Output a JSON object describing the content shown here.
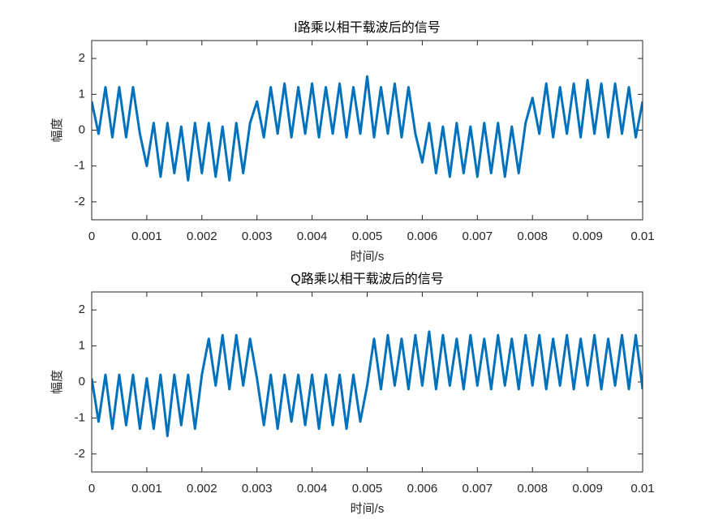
{
  "chart_data": [
    {
      "type": "line",
      "title": "I路乘以相干载波后的信号",
      "xlabel": "时间/s",
      "ylabel": "幅度",
      "color": "#0072bd",
      "x": [
        0,
        0.000125,
        0.00025,
        0.000375,
        0.0005,
        0.000625,
        0.00075,
        0.000875,
        0.001,
        0.001125,
        0.00125,
        0.001375,
        0.0015,
        0.001625,
        0.00175,
        0.001875,
        0.002,
        0.002125,
        0.00225,
        0.002375,
        0.0025,
        0.002625,
        0.00275,
        0.002875,
        0.003,
        0.003125,
        0.00325,
        0.003375,
        0.0035,
        0.003625,
        0.00375,
        0.003875,
        0.004,
        0.004125,
        0.00425,
        0.004375,
        0.0045,
        0.004625,
        0.00475,
        0.004875,
        0.005,
        0.005125,
        0.00525,
        0.005375,
        0.0055,
        0.005625,
        0.00575,
        0.005875,
        0.006,
        0.006125,
        0.00625,
        0.006375,
        0.0065,
        0.006625,
        0.00675,
        0.006875,
        0.007,
        0.007125,
        0.00725,
        0.007375,
        0.0075,
        0.007625,
        0.00775,
        0.007875,
        0.008,
        0.008125,
        0.00825,
        0.008375,
        0.0085,
        0.008625,
        0.00875,
        0.008875,
        0.009,
        0.009125,
        0.00925,
        0.009375,
        0.0095,
        0.009625,
        0.00975,
        0.009875,
        0.01
      ],
      "values": [
        0.8,
        -0.1,
        1.2,
        -0.2,
        1.2,
        -0.2,
        1.2,
        -0.1,
        -1.0,
        0.2,
        -1.3,
        0.2,
        -1.2,
        0.1,
        -1.4,
        0.2,
        -1.2,
        0.2,
        -1.3,
        0.1,
        -1.4,
        0.2,
        -1.2,
        0.2,
        0.8,
        -0.2,
        1.2,
        -0.1,
        1.3,
        -0.2,
        1.2,
        -0.1,
        1.3,
        -0.2,
        1.2,
        -0.1,
        1.3,
        -0.2,
        1.2,
        -0.1,
        1.5,
        -0.2,
        1.2,
        -0.1,
        1.3,
        -0.2,
        1.2,
        -0.1,
        -0.9,
        0.2,
        -1.2,
        0.1,
        -1.3,
        0.2,
        -1.2,
        0.1,
        -1.3,
        0.2,
        -1.2,
        0.2,
        -1.3,
        0.1,
        -1.2,
        0.2,
        0.9,
        -0.1,
        1.3,
        -0.2,
        1.2,
        -0.1,
        1.3,
        -0.2,
        1.4,
        -0.1,
        1.3,
        -0.2,
        1.3,
        -0.1,
        1.2,
        -0.2,
        0.8
      ],
      "xlim": [
        0,
        0.01
      ],
      "xticks": [
        0,
        0.001,
        0.002,
        0.003,
        0.004,
        0.005,
        0.006,
        0.007,
        0.008,
        0.009,
        0.01
      ],
      "ylim": [
        -2.5,
        2.5
      ],
      "yticks": [
        -2,
        -1,
        0,
        1,
        2
      ],
      "grid": false
    },
    {
      "type": "line",
      "title": "Q路乘以相干载波后的信号",
      "xlabel": "时间/s",
      "ylabel": "幅度",
      "color": "#0072bd",
      "x": [
        0,
        0.000125,
        0.00025,
        0.000375,
        0.0005,
        0.000625,
        0.00075,
        0.000875,
        0.001,
        0.001125,
        0.00125,
        0.001375,
        0.0015,
        0.001625,
        0.00175,
        0.001875,
        0.002,
        0.002125,
        0.00225,
        0.002375,
        0.0025,
        0.002625,
        0.00275,
        0.002875,
        0.003,
        0.003125,
        0.00325,
        0.003375,
        0.0035,
        0.003625,
        0.00375,
        0.003875,
        0.004,
        0.004125,
        0.00425,
        0.004375,
        0.0045,
        0.004625,
        0.00475,
        0.004875,
        0.005,
        0.005125,
        0.00525,
        0.005375,
        0.0055,
        0.005625,
        0.00575,
        0.005875,
        0.006,
        0.006125,
        0.00625,
        0.006375,
        0.0065,
        0.006625,
        0.00675,
        0.006875,
        0.007,
        0.007125,
        0.00725,
        0.007375,
        0.0075,
        0.007625,
        0.00775,
        0.007875,
        0.008,
        0.008125,
        0.00825,
        0.008375,
        0.0085,
        0.008625,
        0.00875,
        0.008875,
        0.009,
        0.009125,
        0.00925,
        0.009375,
        0.0095,
        0.009625,
        0.00975,
        0.009875,
        0.01
      ],
      "values": [
        0.1,
        -1.1,
        0.2,
        -1.3,
        0.2,
        -1.2,
        0.2,
        -1.3,
        0.1,
        -1.3,
        0.2,
        -1.5,
        0.2,
        -1.2,
        0.2,
        -1.3,
        0.2,
        1.2,
        -0.1,
        1.3,
        -0.2,
        1.3,
        -0.1,
        1.2,
        0.1,
        -1.2,
        0.2,
        -1.3,
        0.2,
        -1.1,
        0.2,
        -1.2,
        0.2,
        -1.3,
        0.2,
        -1.2,
        0.2,
        -1.3,
        0.2,
        -1.1,
        -0.1,
        1.2,
        -0.2,
        1.3,
        -0.1,
        1.2,
        -0.2,
        1.3,
        -0.1,
        1.4,
        -0.2,
        1.3,
        -0.1,
        1.2,
        -0.2,
        1.3,
        -0.1,
        1.2,
        -0.2,
        1.3,
        -0.1,
        1.2,
        -0.2,
        1.3,
        -0.1,
        1.3,
        -0.2,
        1.2,
        -0.1,
        1.3,
        -0.2,
        1.2,
        -0.1,
        1.3,
        -0.2,
        1.2,
        -0.1,
        1.3,
        -0.2,
        1.3,
        -0.2
      ],
      "xlim": [
        0,
        0.01
      ],
      "xticks": [
        0,
        0.001,
        0.002,
        0.003,
        0.004,
        0.005,
        0.006,
        0.007,
        0.008,
        0.009,
        0.01
      ],
      "ylim": [
        -2.5,
        2.5
      ],
      "yticks": [
        -2,
        -1,
        0,
        1,
        2
      ],
      "grid": false
    }
  ]
}
